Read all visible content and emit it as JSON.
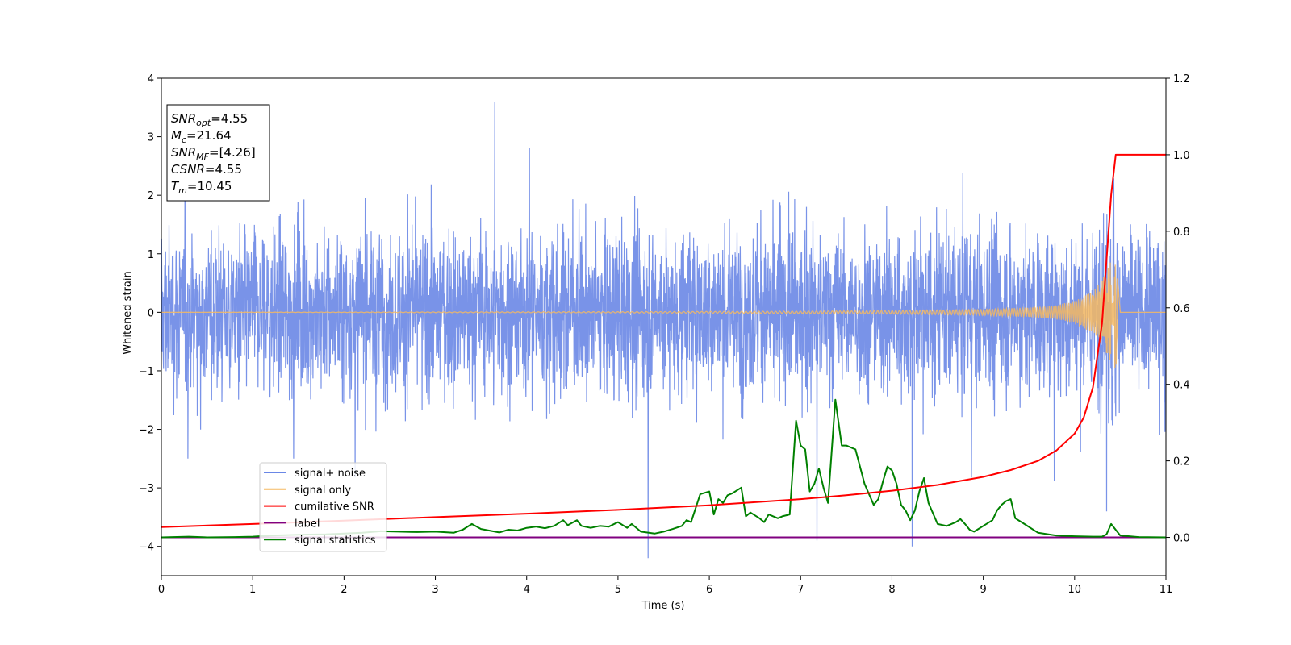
{
  "chart_data": {
    "type": "line",
    "title": "",
    "xlabel": "Time (s)",
    "ylabel": "Whitened strain",
    "xlim": [
      0,
      11
    ],
    "ylim": [
      -4.5,
      4.0
    ],
    "ylim_right": [
      -0.1,
      1.2
    ],
    "xticks": [
      "0",
      "1",
      "2",
      "3",
      "4",
      "5",
      "6",
      "7",
      "8",
      "9",
      "10",
      "11"
    ],
    "yticks": [
      "−4",
      "−3",
      "−2",
      "−1",
      "0",
      "1",
      "2",
      "3",
      "4"
    ],
    "yticks_right": [
      "0.0",
      "0.2",
      "0.4",
      "0.6",
      "0.8",
      "1.0",
      "1.2"
    ],
    "grid": false,
    "legend": {
      "placement": "lower-left",
      "entries": [
        {
          "name": "signal+ noise",
          "color": "#6a87e6"
        },
        {
          "name": "signal only",
          "color": "#f5b961"
        },
        {
          "name": "cumilative SNR",
          "color": "#ff0000"
        },
        {
          "name": "label",
          "color": "#800080"
        },
        {
          "name": "signal statistics",
          "color": "#008000"
        }
      ]
    },
    "annotation": [
      {
        "base": "SNR",
        "sub": "opt",
        "value": "=4.55"
      },
      {
        "base": "M",
        "sub": "c",
        "value": "=21.64"
      },
      {
        "base": "SNR",
        "sub": "MF",
        "value": "=[4.26]"
      },
      {
        "base": "CSNR",
        "sub": "",
        "value": "=4.55"
      },
      {
        "base": "T",
        "sub": "m",
        "value": "=10.45"
      }
    ],
    "series": [
      {
        "name": "signal+ noise",
        "axis": "left",
        "color": "#6a87e6",
        "description": "whitened noise plus signal, roughly uniform amplitude",
        "envelope_typical": [
          -2.0,
          2.2
        ],
        "extremes": [
          [
            3.65,
            3.6
          ],
          [
            5.33,
            -4.2
          ],
          [
            8.22,
            -4.0
          ],
          [
            7.18,
            -3.9
          ],
          [
            10.35,
            -3.4
          ]
        ]
      },
      {
        "name": "signal only",
        "axis": "left",
        "color": "#f5b961",
        "description": "chirp growing to merger at 10.45 s",
        "x": [
          0,
          5,
          7,
          8,
          9,
          9.5,
          9.8,
          10.0,
          10.2,
          10.3,
          10.4,
          10.45,
          10.5,
          11
        ],
        "amplitude": [
          0.0,
          0.01,
          0.02,
          0.03,
          0.05,
          0.08,
          0.12,
          0.2,
          0.35,
          0.55,
          0.9,
          1.0,
          0.0,
          0.0
        ]
      },
      {
        "name": "cumilative SNR",
        "axis": "right",
        "color": "#ff0000",
        "x": [
          0,
          1,
          2,
          3,
          4,
          5,
          6,
          7,
          7.5,
          8,
          8.5,
          9,
          9.3,
          9.6,
          9.8,
          10.0,
          10.1,
          10.2,
          10.3,
          10.4,
          10.45,
          10.5,
          11
        ],
        "values": [
          0.027,
          0.035,
          0.044,
          0.053,
          0.062,
          0.072,
          0.084,
          0.1,
          0.11,
          0.122,
          0.137,
          0.158,
          0.176,
          0.2,
          0.227,
          0.271,
          0.313,
          0.392,
          0.559,
          0.895,
          1.0,
          1.0,
          1.0
        ]
      },
      {
        "name": "label",
        "axis": "right",
        "color": "#800080",
        "x": [
          0,
          11
        ],
        "values": [
          0.0,
          0.0
        ]
      },
      {
        "name": "signal statistics",
        "axis": "right",
        "color": "#008000",
        "x": [
          0,
          0.3,
          0.5,
          0.8,
          1.0,
          1.2,
          1.5,
          1.8,
          2.0,
          2.2,
          2.4,
          2.6,
          2.8,
          3.0,
          3.2,
          3.3,
          3.4,
          3.5,
          3.7,
          3.8,
          3.9,
          4.0,
          4.1,
          4.2,
          4.3,
          4.4,
          4.45,
          4.55,
          4.6,
          4.7,
          4.8,
          4.9,
          5.0,
          5.1,
          5.15,
          5.25,
          5.4,
          5.5,
          5.6,
          5.7,
          5.75,
          5.8,
          5.9,
          6.0,
          6.05,
          6.1,
          6.15,
          6.2,
          6.25,
          6.35,
          6.4,
          6.45,
          6.55,
          6.6,
          6.65,
          6.7,
          6.75,
          6.8,
          6.88,
          6.95,
          7.0,
          7.05,
          7.1,
          7.15,
          7.2,
          7.25,
          7.3,
          7.38,
          7.45,
          7.5,
          7.55,
          7.6,
          7.7,
          7.8,
          7.85,
          7.9,
          7.95,
          8.0,
          8.05,
          8.1,
          8.15,
          8.2,
          8.25,
          8.3,
          8.35,
          8.4,
          8.5,
          8.6,
          8.7,
          8.75,
          8.8,
          8.85,
          8.9,
          9.0,
          9.1,
          9.15,
          9.2,
          9.25,
          9.3,
          9.35,
          9.45,
          9.6,
          9.8,
          10.0,
          10.2,
          10.3,
          10.35,
          10.4,
          10.5,
          10.7,
          11
        ],
        "values": [
          0.0,
          0.002,
          0.0,
          0.001,
          0.002,
          0.005,
          0.007,
          0.008,
          0.01,
          0.012,
          0.016,
          0.015,
          0.014,
          0.015,
          0.012,
          0.02,
          0.035,
          0.022,
          0.013,
          0.02,
          0.018,
          0.025,
          0.028,
          0.024,
          0.03,
          0.045,
          0.032,
          0.045,
          0.03,
          0.025,
          0.03,
          0.028,
          0.04,
          0.025,
          0.035,
          0.015,
          0.01,
          0.015,
          0.022,
          0.03,
          0.045,
          0.04,
          0.113,
          0.12,
          0.06,
          0.1,
          0.09,
          0.11,
          0.115,
          0.13,
          0.055,
          0.065,
          0.05,
          0.04,
          0.06,
          0.055,
          0.05,
          0.055,
          0.06,
          0.305,
          0.24,
          0.23,
          0.12,
          0.14,
          0.18,
          0.13,
          0.09,
          0.36,
          0.24,
          0.24,
          0.235,
          0.23,
          0.14,
          0.085,
          0.1,
          0.145,
          0.185,
          0.175,
          0.14,
          0.085,
          0.07,
          0.045,
          0.07,
          0.12,
          0.155,
          0.09,
          0.035,
          0.03,
          0.04,
          0.048,
          0.035,
          0.02,
          0.015,
          0.03,
          0.045,
          0.07,
          0.085,
          0.095,
          0.1,
          0.05,
          0.035,
          0.012,
          0.005,
          0.003,
          0.002,
          0.002,
          0.008,
          0.035,
          0.005,
          0.001,
          0.0
        ]
      }
    ]
  }
}
